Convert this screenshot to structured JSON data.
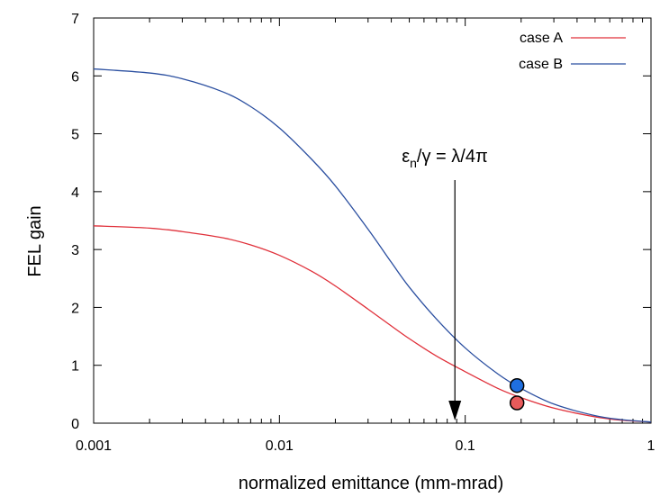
{
  "chart_data": {
    "type": "line",
    "xlabel": "normalized emittance (mm-mrad)",
    "ylabel": "FEL gain",
    "xscale": "log",
    "xlim": [
      0.001,
      1
    ],
    "ylim": [
      0,
      7
    ],
    "x_ticks": [
      0.001,
      0.01,
      0.1,
      1
    ],
    "x_tick_labels": [
      "0.001",
      "0.01",
      "0.1",
      "1"
    ],
    "y_ticks": [
      0,
      1,
      2,
      3,
      4,
      5,
      6,
      7
    ],
    "y_tick_labels": [
      "0",
      "1",
      "2",
      "3",
      "4",
      "5",
      "6",
      "7"
    ],
    "grid": false,
    "legend": "top-right",
    "series": [
      {
        "name": "case A",
        "color": "#e0303a",
        "x": [
          0.001,
          0.002,
          0.003,
          0.005,
          0.007,
          0.01,
          0.015,
          0.02,
          0.03,
          0.04,
          0.05,
          0.07,
          0.1,
          0.15,
          0.2,
          0.3,
          0.5,
          0.7,
          1
        ],
        "y": [
          3.41,
          3.37,
          3.31,
          3.2,
          3.08,
          2.9,
          2.62,
          2.37,
          1.97,
          1.68,
          1.46,
          1.16,
          0.89,
          0.6,
          0.44,
          0.26,
          0.11,
          0.05,
          0.02
        ]
      },
      {
        "name": "case B",
        "color": "#2b4fa0",
        "x": [
          0.001,
          0.002,
          0.003,
          0.005,
          0.007,
          0.01,
          0.015,
          0.02,
          0.03,
          0.04,
          0.05,
          0.07,
          0.1,
          0.15,
          0.2,
          0.3,
          0.5,
          0.7,
          1
        ],
        "y": [
          6.12,
          6.05,
          5.95,
          5.72,
          5.47,
          5.1,
          4.55,
          4.1,
          3.35,
          2.78,
          2.35,
          1.8,
          1.3,
          0.85,
          0.6,
          0.33,
          0.13,
          0.06,
          0.02
        ]
      }
    ],
    "markers": [
      {
        "x": 0.19,
        "y": 0.65,
        "color": "#1f6fe0"
      },
      {
        "x": 0.19,
        "y": 0.35,
        "color": "#e85b5b"
      }
    ],
    "annotation": {
      "label_main": "ε",
      "label_sub": "n",
      "label_rest": "/γ = λ/4π",
      "arrow_x": 0.088,
      "arrow_y_start": 4.2,
      "arrow_y_end": 0.0
    }
  }
}
